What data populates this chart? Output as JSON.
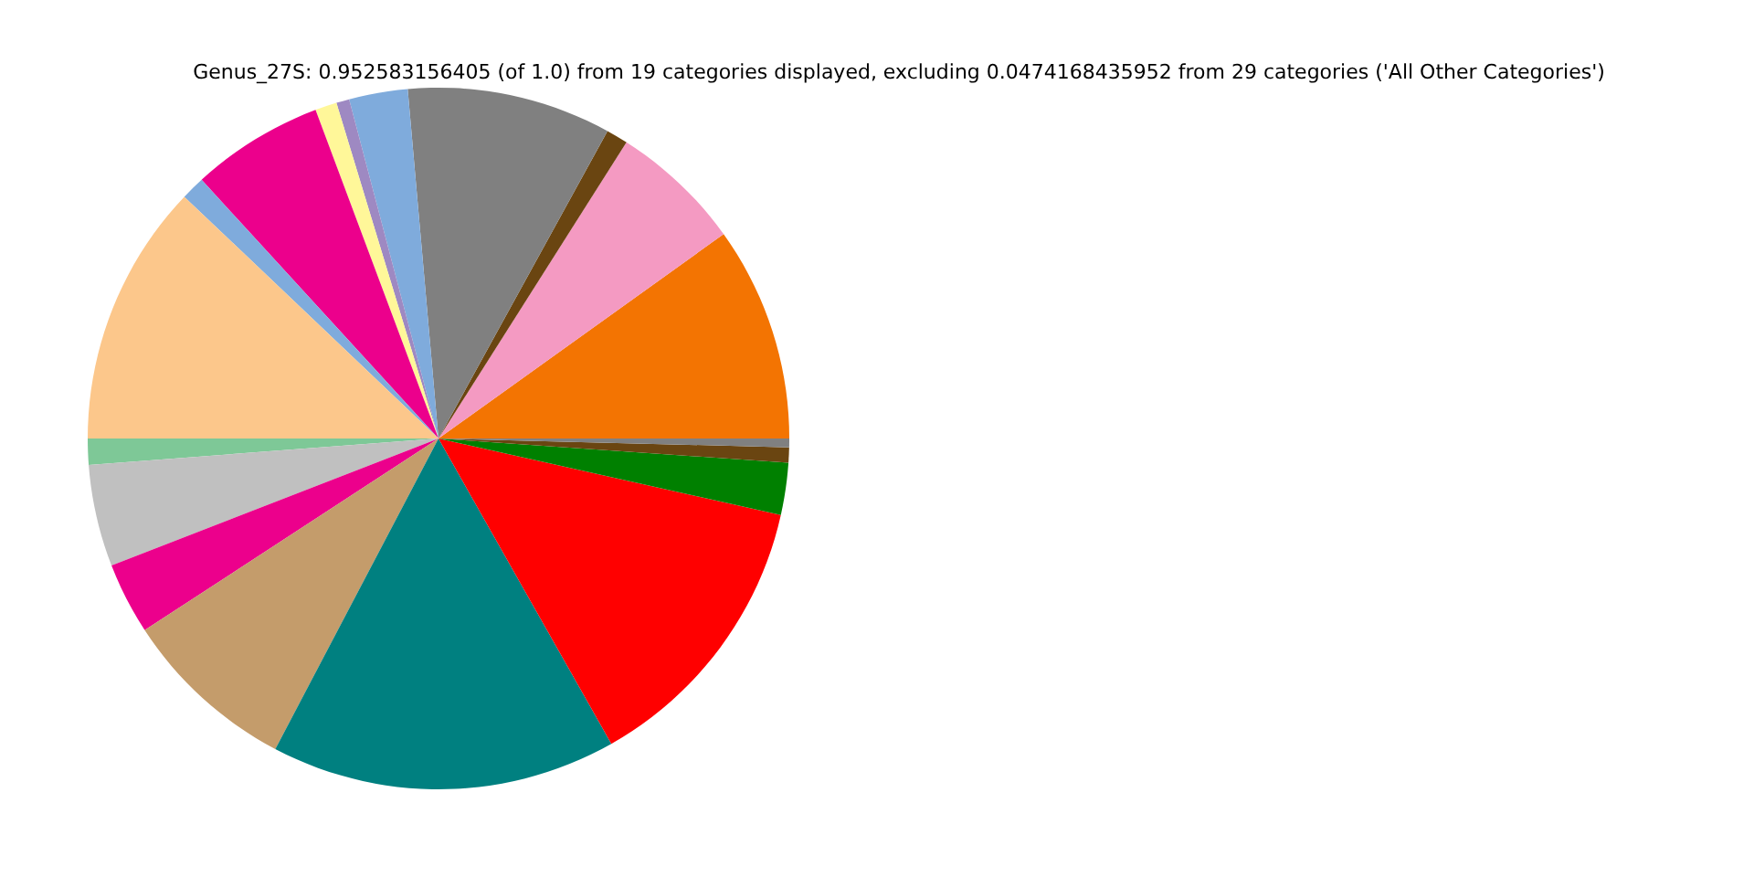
{
  "chart_data": {
    "type": "pie",
    "title": "Genus_27S: 0.952583156405 (of 1.0) from 19 categories displayed, excluding 0.0474168435952 from 29 categories ('All Other Categories')",
    "categories": [
      null,
      null,
      null,
      null,
      null,
      null,
      null,
      null,
      null,
      null,
      null,
      null,
      null,
      null,
      null,
      null,
      null,
      null,
      null
    ],
    "values": [
      9.9,
      6.1,
      1.0,
      9.4,
      2.7,
      0.6,
      1.0,
      6.1,
      1.1,
      12.1,
      1.2,
      4.7,
      3.3,
      8.1,
      15.9,
      13.3,
      2.4,
      0.7,
      0.4
    ],
    "colors": [
      "#f37402",
      "#f49ac2",
      "#6a4511",
      "#808080",
      "#7fabdc",
      "#9e89c2",
      "#fff799",
      "#ec008c",
      "#7fabdc",
      "#fcc78b",
      "#7ec897",
      "#c0c0c0",
      "#ec008c",
      "#c49c6b",
      "#008080",
      "#ff0000",
      "#008000",
      "#6a4511",
      "#808080"
    ]
  }
}
